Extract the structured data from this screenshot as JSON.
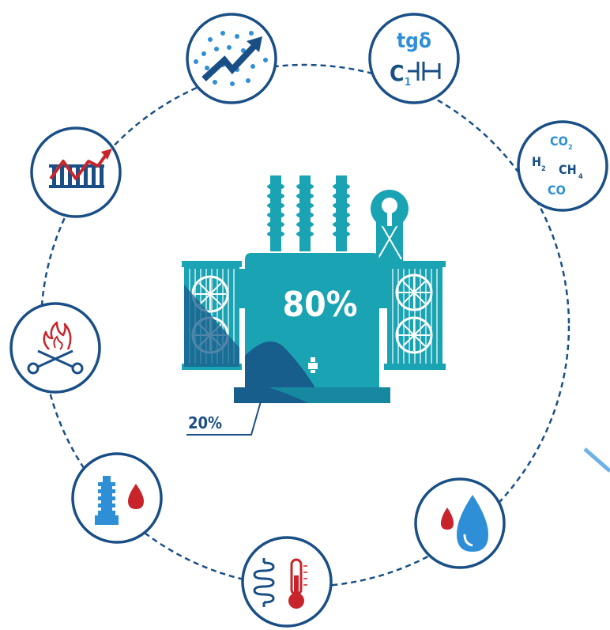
{
  "colors": {
    "navy": "#1a4f86",
    "teal": "#1aa3b3",
    "teal_dark": "#1688a0",
    "blue_dark": "#175e8c",
    "light_blue": "#2f8fd6",
    "red": "#c7242b",
    "white": "#ffffff"
  },
  "center": {
    "main_percent": "80%",
    "base_percent": "20%"
  },
  "nodes": {
    "dielectric": {
      "line1": "tgδ",
      "c_letter": "C",
      "c_subscript": "1"
    },
    "gases": {
      "co2": "CO",
      "co2_sub": "2",
      "h2": "H",
      "h2_sub": "2",
      "ch4": "CH",
      "ch4_sub": "4",
      "co": "CO"
    }
  },
  "icons": [
    "particles-trend-icon",
    "dielectric-loss-icon",
    "dissolved-gas-icon",
    "moisture-drops-icon",
    "winding-temperature-icon",
    "bushing-oil-icon",
    "tap-changer-burn-icon",
    "load-trend-icon"
  ]
}
